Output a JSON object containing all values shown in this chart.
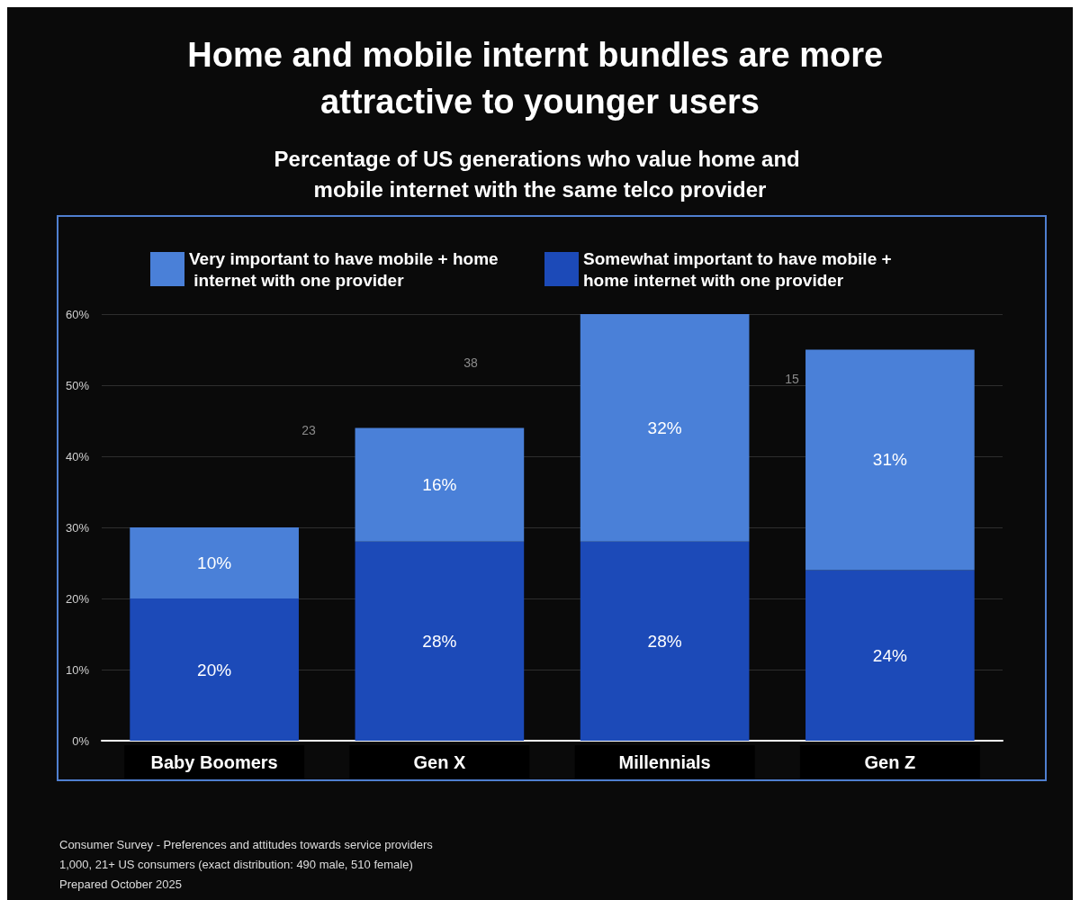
{
  "chart_data": {
    "type": "bar",
    "stacked": true,
    "title": "Home and mobile internt bundles are more attractive to younger users",
    "subtitle": "Percentage of US generations who value home and mobile internet with the same telco provider",
    "categories": [
      "Baby Boomers",
      "Gen X",
      "Millennials",
      "Gen Z"
    ],
    "series": [
      {
        "name": "Somewhat important to have mobile + home internet with one provider",
        "color": "#1c4ab8",
        "values": [
          20,
          28,
          28,
          24
        ],
        "value_labels": [
          "20%",
          "28%",
          "28%",
          "24%"
        ]
      },
      {
        "name": "Very important to have mobile + home internet with one provider",
        "color": "#4a80d8",
        "values": [
          10,
          16,
          32,
          31
        ],
        "value_labels": [
          "10%",
          "16%",
          "32%",
          "31%"
        ]
      }
    ],
    "ylim": [
      0,
      60
    ],
    "yticks": [
      {
        "value": 0,
        "label": "0%"
      },
      {
        "value": 10,
        "label": "10%"
      },
      {
        "value": 20,
        "label": "20%"
      },
      {
        "value": 30,
        "label": "30%"
      },
      {
        "value": 40,
        "label": "40%"
      },
      {
        "value": 50,
        "label": "50%"
      },
      {
        "value": 60,
        "label": "60%"
      }
    ],
    "grid": "y",
    "legend": "top",
    "annotations": [
      "23",
      "38",
      "15",
      "Consumer Survey - Preferences and attitudes towards service providers",
      "1,000, 21+ US consumers (exact distribution: 490 male, 510 female)",
      "Prepared October 2025"
    ]
  }
}
